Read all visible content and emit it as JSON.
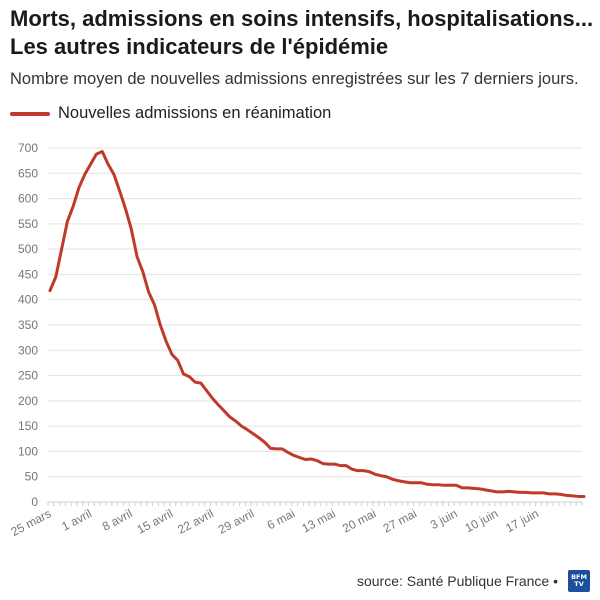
{
  "header": {
    "title_line1": "Morts, admissions en soins intensifs, hospitalisations...",
    "title_line2": "Les autres indicateurs de l'épidémie",
    "subtitle": "Nombre moyen de nouvelles admissions enregistrées sur les 7 derniers jours."
  },
  "footer": {
    "source": "source: Santé Publique France •",
    "logo_text": "BFM TV"
  },
  "colors": {
    "line": "#c0392b",
    "grid": "#e3e3e3",
    "axis_text": "#777777"
  },
  "chart_data": {
    "type": "line",
    "title": "Morts, admissions en soins intensifs, hospitalisations... Les autres indicateurs de l'épidémie",
    "subtitle": "Nombre moyen de nouvelles admissions enregistrées sur les 7 derniers jours.",
    "x_labels": [
      "25 mars",
      "1 avril",
      "8 avril",
      "15 avril",
      "22 avril",
      "29 avril",
      "6 mai",
      "13 mai",
      "20 mai",
      "27 mai",
      "3 juin",
      "10 juin",
      "17 juin"
    ],
    "y_ticks": [
      0,
      50,
      100,
      150,
      200,
      250,
      300,
      350,
      400,
      450,
      500,
      550,
      600,
      650,
      700
    ],
    "ylim": [
      0,
      700
    ],
    "grid": true,
    "legend_position": "top-left",
    "series": [
      {
        "name": "Nouvelles admissions en réanimation",
        "values": [
          418,
          445,
          500,
          555,
          585,
          622,
          648,
          668,
          688,
          693,
          668,
          648,
          615,
          580,
          540,
          485,
          455,
          415,
          390,
          350,
          318,
          292,
          280,
          253,
          248,
          237,
          235,
          220,
          205,
          192,
          180,
          168,
          160,
          150,
          143,
          135,
          127,
          118,
          106,
          105,
          105,
          98,
          92,
          88,
          84,
          85,
          82,
          76,
          75,
          75,
          72,
          72,
          65,
          62,
          62,
          60,
          55,
          52,
          50,
          45,
          42,
          40,
          38,
          38,
          38,
          35,
          34,
          34,
          33,
          33,
          33,
          28,
          28,
          27,
          26,
          24,
          22,
          20,
          20,
          21,
          20,
          19,
          19,
          18,
          18,
          18,
          16,
          16,
          15,
          13,
          12,
          11,
          11
        ]
      }
    ]
  }
}
